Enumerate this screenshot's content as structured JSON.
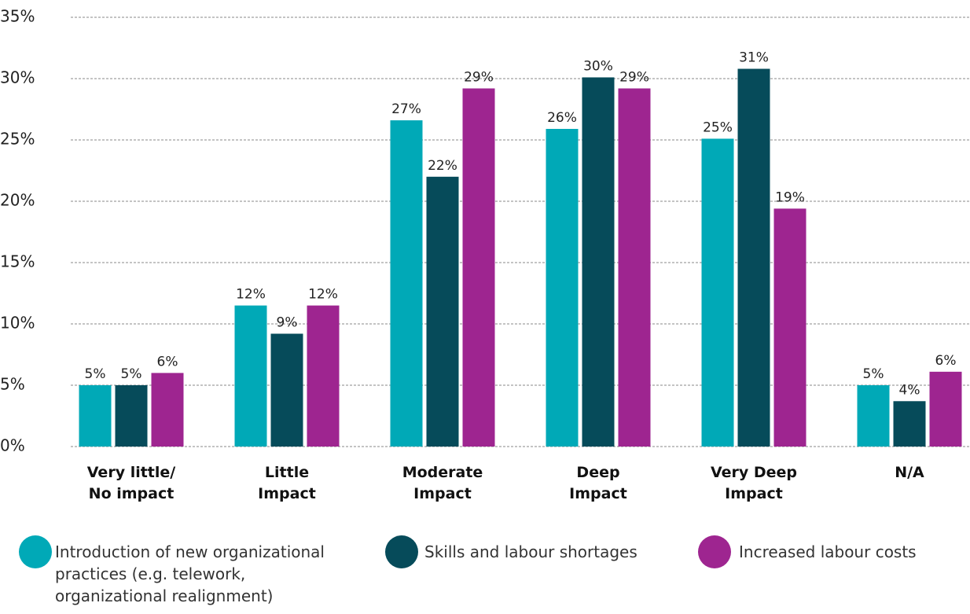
{
  "chart_data": {
    "type": "bar",
    "categories": [
      "Very little/\nNo impact",
      "Little\nImpact",
      "Moderate\nImpact",
      "Deep\nImpact",
      "Very Deep\nImpact",
      "N/A"
    ],
    "series": [
      {
        "name": "Introduction of new organizational\npractices (e.g. telework,\norganizational realignment)",
        "color": "#00a9b7",
        "values": [
          5,
          11.5,
          26.6,
          25.9,
          25.1,
          5
        ],
        "value_labels": [
          "5%",
          "12%",
          "27%",
          "26%",
          "25%",
          "5%"
        ]
      },
      {
        "name": "Skills and labour shortages",
        "color": "#064b5a",
        "values": [
          5,
          9.2,
          22,
          30.1,
          30.8,
          3.7
        ],
        "value_labels": [
          "5%",
          "9%",
          "22%",
          "30%",
          "31%",
          "4%"
        ]
      },
      {
        "name": "Increased labour costs",
        "color": "#9e2590",
        "values": [
          6,
          11.5,
          29.2,
          29.2,
          19.4,
          6.1
        ],
        "value_labels": [
          "6%",
          "12%",
          "29%",
          "29%",
          "19%",
          "6%"
        ]
      }
    ],
    "ylim": [
      0,
      35
    ],
    "yticks": [
      {
        "value": 0,
        "label": "0%"
      },
      {
        "value": 5,
        "label": "5%"
      },
      {
        "value": 10,
        "label": "10%"
      },
      {
        "value": 15,
        "label": "15%"
      },
      {
        "value": 20,
        "label": "20%"
      },
      {
        "value": 25,
        "label": "25%"
      },
      {
        "value": 30,
        "label": "30%"
      },
      {
        "value": 35,
        "label": "35%"
      }
    ],
    "grid": true
  }
}
